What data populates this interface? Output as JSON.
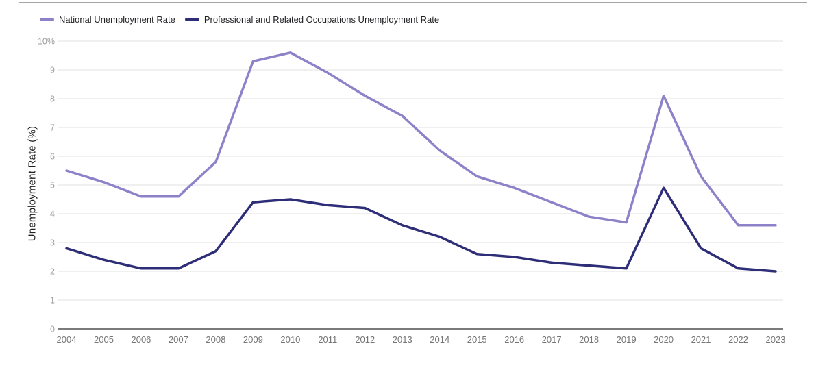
{
  "page": {
    "background": "#ffffff"
  },
  "legend": {
    "items": [
      {
        "label": "National Unemployment Rate",
        "color": "#8c82c9"
      },
      {
        "label": "Professional and Related Occupations Unemployment Rate",
        "color": "#2e2e78"
      }
    ]
  },
  "chart_data": {
    "type": "line",
    "title": "",
    "xlabel": "",
    "ylabel": "Unemployment Rate (%)",
    "ylim": [
      0,
      10
    ],
    "grid": true,
    "legend_position": "top-left",
    "ytick_labels": [
      "0",
      "1",
      "2",
      "3",
      "4",
      "5",
      "6",
      "7",
      "8",
      "9",
      "10%"
    ],
    "categories": [
      "2004",
      "2005",
      "2006",
      "2007",
      "2008",
      "2009",
      "2010",
      "2011",
      "2012",
      "2013",
      "2014",
      "2015",
      "2016",
      "2017",
      "2018",
      "2019",
      "2020",
      "2021",
      "2022",
      "2023"
    ],
    "series": [
      {
        "name": "National Unemployment Rate",
        "color": "#8c82c9",
        "values": [
          5.5,
          5.1,
          4.6,
          4.6,
          5.8,
          9.3,
          9.6,
          8.9,
          8.1,
          7.4,
          6.2,
          5.3,
          4.9,
          4.4,
          3.9,
          3.7,
          8.1,
          5.3,
          3.6,
          3.6
        ]
      },
      {
        "name": "Professional and Related Occupations Unemployment Rate",
        "color": "#2e2e78",
        "values": [
          2.8,
          2.4,
          2.1,
          2.1,
          2.7,
          4.4,
          4.5,
          4.3,
          4.2,
          3.6,
          3.2,
          2.6,
          2.5,
          2.3,
          2.2,
          2.1,
          4.9,
          2.8,
          2.1,
          2.0
        ]
      }
    ]
  },
  "colors": {
    "gridline": "#ececec",
    "axis_line": "#7b7b7b",
    "top_rule": "#a5a5a5",
    "y_tick_text": "#9e9e9e",
    "x_tick_text": "#757575",
    "label_text": "#202124"
  }
}
